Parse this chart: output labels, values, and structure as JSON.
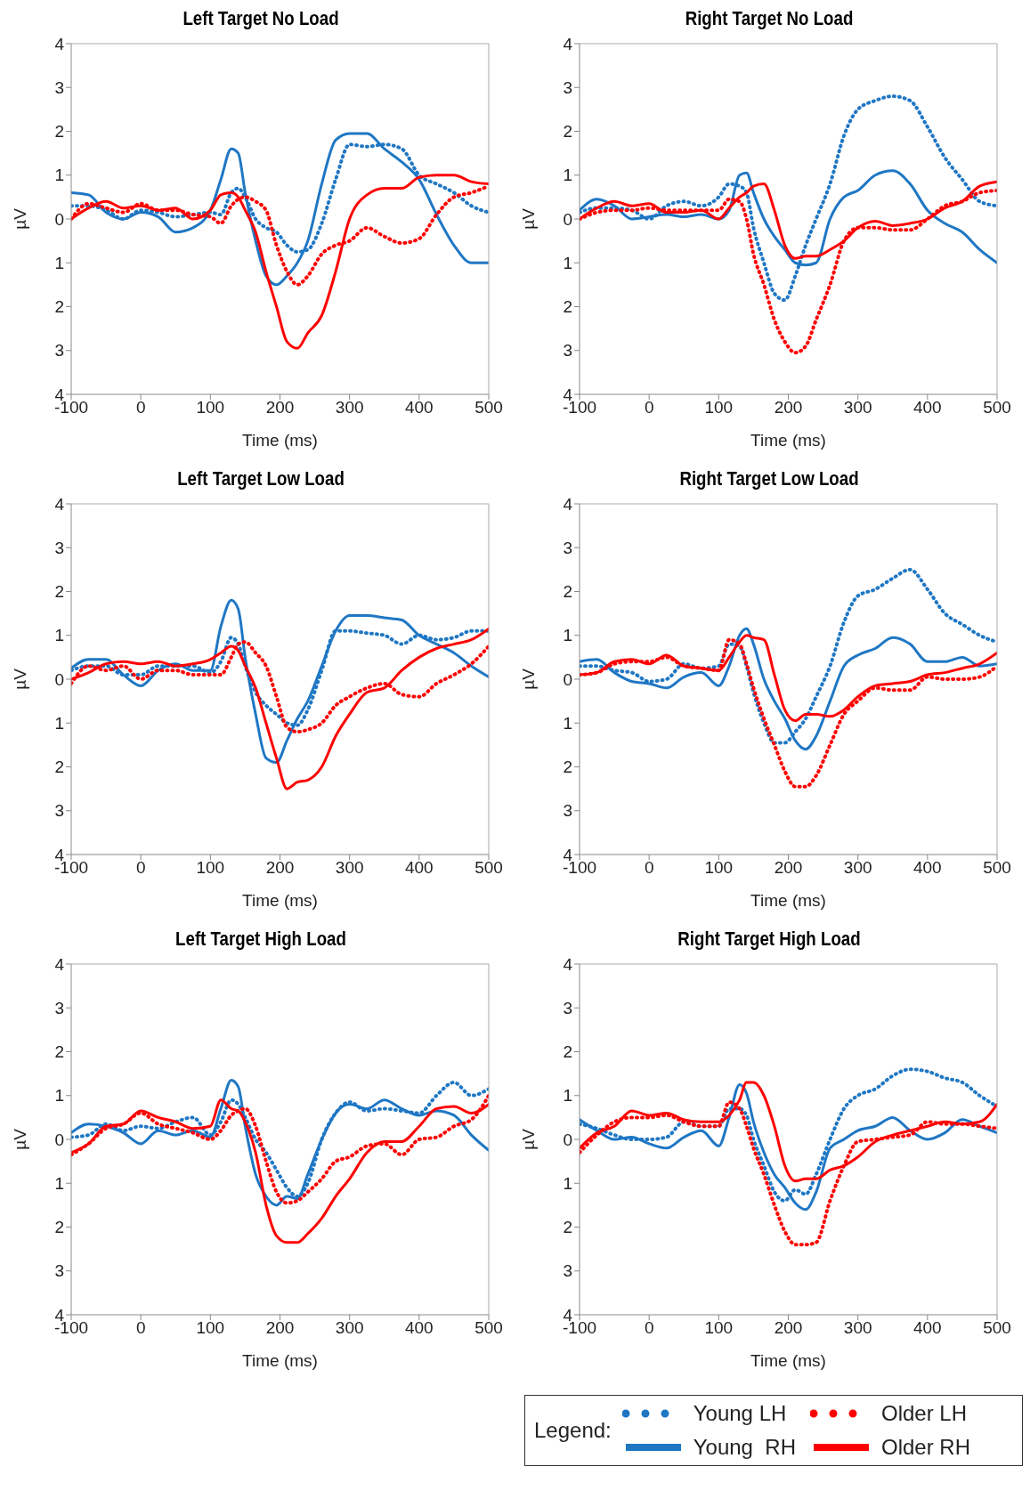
{
  "chart_data": [
    {
      "type": "line",
      "title": "Left Target No Load",
      "xlabel": "Time (ms)",
      "ylabel": "µV",
      "legend": false,
      "x": [
        -100,
        -75,
        -50,
        -25,
        0,
        25,
        50,
        75,
        100,
        115,
        130,
        140,
        150,
        165,
        180,
        195,
        210,
        225,
        240,
        260,
        280,
        300,
        325,
        350,
        375,
        400,
        425,
        450,
        475,
        500
      ],
      "xlim": [
        -100,
        500
      ],
      "xticks": [
        -100,
        0,
        100,
        200,
        300,
        400,
        500
      ],
      "ylim": [
        -4,
        4
      ],
      "yticks": [
        {
          "value": -4,
          "label": "4"
        },
        {
          "value": -3,
          "label": "3"
        },
        {
          "value": -2,
          "label": "2"
        },
        {
          "value": -1,
          "label": "1"
        },
        0,
        1,
        2,
        3,
        4
      ],
      "series": [
        {
          "color": "#1f77c4",
          "line_style": "dotted",
          "values": [
            0.3,
            0.3,
            0.2,
            0.0,
            0.2,
            0.15,
            0.05,
            0.1,
            0.15,
            0.1,
            0.6,
            0.7,
            0.5,
            0.0,
            -0.2,
            -0.3,
            -0.6,
            -0.75,
            -0.7,
            -0.1,
            0.9,
            1.7,
            1.65,
            1.7,
            1.6,
            1.0,
            0.8,
            0.6,
            0.3,
            0.15
          ]
        },
        {
          "color": "#1f77c4",
          "line_style": "solid",
          "values": [
            0.6,
            0.55,
            0.15,
            0.0,
            0.15,
            0.05,
            -0.3,
            -0.2,
            0.2,
            0.9,
            1.6,
            1.5,
            0.6,
            -0.5,
            -1.3,
            -1.5,
            -1.3,
            -1.0,
            -0.5,
            0.8,
            1.8,
            1.95,
            1.95,
            1.6,
            1.3,
            0.9,
            0.1,
            -0.6,
            -1.0,
            -1.0
          ]
        },
        {
          "color": "#ff0000",
          "line_style": "dotted",
          "values": [
            0.0,
            0.35,
            0.25,
            0.15,
            0.35,
            0.2,
            0.2,
            0.1,
            0.05,
            -0.1,
            0.3,
            0.45,
            0.5,
            0.4,
            0.2,
            -0.6,
            -1.2,
            -1.5,
            -1.3,
            -0.8,
            -0.6,
            -0.5,
            -0.2,
            -0.4,
            -0.55,
            -0.45,
            0.1,
            0.5,
            0.6,
            0.75
          ]
        },
        {
          "color": "#ff0000",
          "line_style": "solid",
          "values": [
            0.0,
            0.25,
            0.4,
            0.25,
            0.3,
            0.2,
            0.25,
            0.0,
            0.2,
            0.55,
            0.6,
            0.5,
            0.2,
            -0.3,
            -1.2,
            -2.0,
            -2.8,
            -2.95,
            -2.6,
            -2.2,
            -1.2,
            0.0,
            0.55,
            0.7,
            0.7,
            0.95,
            1.0,
            1.0,
            0.85,
            0.8
          ]
        }
      ]
    },
    {
      "type": "line",
      "title": "Right Target No Load",
      "xlabel": "Time (ms)",
      "ylabel": "µV",
      "legend": false,
      "x": [
        -100,
        -75,
        -50,
        -25,
        0,
        25,
        50,
        75,
        100,
        115,
        130,
        140,
        150,
        165,
        180,
        195,
        210,
        225,
        240,
        260,
        280,
        300,
        325,
        350,
        375,
        400,
        425,
        450,
        475,
        500
      ],
      "xlim": [
        -100,
        500
      ],
      "xticks": [
        -100,
        0,
        100,
        200,
        300,
        400,
        500
      ],
      "ylim": [
        -4,
        4
      ],
      "yticks": [
        {
          "value": -4,
          "label": "4"
        },
        {
          "value": -3,
          "label": "3"
        },
        {
          "value": -2,
          "label": "2"
        },
        {
          "value": -1,
          "label": "1"
        },
        0,
        1,
        2,
        3,
        4
      ],
      "series": [
        {
          "color": "#1f77c4",
          "line_style": "dotted",
          "values": [
            0.15,
            0.25,
            0.25,
            0.2,
            0.0,
            0.3,
            0.4,
            0.3,
            0.5,
            0.8,
            0.75,
            0.6,
            -0.2,
            -1.0,
            -1.7,
            -1.85,
            -1.3,
            -0.6,
            0.0,
            0.8,
            1.9,
            2.5,
            2.7,
            2.8,
            2.7,
            2.1,
            1.4,
            0.9,
            0.4,
            0.3
          ]
        },
        {
          "color": "#1f77c4",
          "line_style": "solid",
          "values": [
            0.2,
            0.45,
            0.3,
            0.0,
            0.05,
            0.1,
            0.05,
            0.1,
            0.0,
            0.2,
            1.0,
            1.05,
            0.6,
            0.0,
            -0.4,
            -0.7,
            -1.0,
            -1.05,
            -1.0,
            0.0,
            0.5,
            0.65,
            1.0,
            1.1,
            0.8,
            0.2,
            -0.1,
            -0.3,
            -0.7,
            -1.0
          ]
        },
        {
          "color": "#ff0000",
          "line_style": "dotted",
          "values": [
            0.0,
            0.15,
            0.2,
            0.2,
            0.25,
            0.2,
            0.2,
            0.2,
            0.2,
            0.45,
            0.4,
            0.0,
            -0.8,
            -1.5,
            -2.3,
            -2.8,
            -3.05,
            -2.9,
            -2.3,
            -1.5,
            -0.5,
            -0.2,
            -0.2,
            -0.25,
            -0.25,
            0.0,
            0.3,
            0.4,
            0.6,
            0.65
          ]
        },
        {
          "color": "#ff0000",
          "line_style": "solid",
          "values": [
            0.0,
            0.25,
            0.4,
            0.3,
            0.35,
            0.15,
            0.15,
            0.2,
            0.0,
            0.25,
            0.5,
            0.6,
            0.75,
            0.8,
            0.2,
            -0.6,
            -0.9,
            -0.85,
            -0.85,
            -0.7,
            -0.5,
            -0.2,
            -0.05,
            -0.15,
            -0.1,
            0.0,
            0.25,
            0.4,
            0.75,
            0.85
          ]
        }
      ]
    },
    {
      "type": "line",
      "title": "Left Target Low Load",
      "xlabel": "Time (ms)",
      "ylabel": "µV",
      "legend": false,
      "x": [
        -100,
        -75,
        -50,
        -25,
        0,
        25,
        50,
        75,
        100,
        115,
        130,
        140,
        150,
        165,
        180,
        195,
        210,
        225,
        240,
        260,
        280,
        300,
        325,
        350,
        375,
        400,
        425,
        450,
        475,
        500
      ],
      "xlim": [
        -100,
        500
      ],
      "xticks": [
        -100,
        0,
        100,
        200,
        300,
        400,
        500
      ],
      "ylim": [
        -4,
        4
      ],
      "yticks": [
        {
          "value": -4,
          "label": "4"
        },
        {
          "value": -3,
          "label": "3"
        },
        {
          "value": -2,
          "label": "2"
        },
        {
          "value": -1,
          "label": "1"
        },
        0,
        1,
        2,
        3,
        4
      ],
      "series": [
        {
          "color": "#1f77c4",
          "line_style": "dotted",
          "values": [
            0.2,
            0.3,
            0.3,
            0.1,
            0.1,
            0.3,
            0.3,
            0.3,
            0.15,
            0.4,
            0.95,
            0.8,
            0.3,
            -0.3,
            -0.6,
            -0.8,
            -1.0,
            -1.05,
            -0.7,
            0.2,
            1.1,
            1.1,
            1.05,
            1.0,
            0.8,
            1.0,
            0.9,
            0.95,
            1.1,
            1.1
          ]
        },
        {
          "color": "#1f77c4",
          "line_style": "solid",
          "values": [
            0.25,
            0.45,
            0.45,
            0.1,
            -0.15,
            0.2,
            0.35,
            0.2,
            0.2,
            1.2,
            1.8,
            1.6,
            0.5,
            -0.8,
            -1.8,
            -1.9,
            -1.4,
            -0.9,
            -0.5,
            0.3,
            1.1,
            1.45,
            1.45,
            1.4,
            1.35,
            1.0,
            0.8,
            0.6,
            0.3,
            0.05
          ]
        },
        {
          "color": "#ff0000",
          "line_style": "dotted",
          "values": [
            -0.1,
            0.3,
            0.2,
            0.3,
            0.0,
            0.2,
            0.2,
            0.1,
            0.1,
            0.1,
            0.5,
            0.8,
            0.85,
            0.6,
            0.3,
            -0.4,
            -1.1,
            -1.2,
            -1.15,
            -1.0,
            -0.6,
            -0.4,
            -0.2,
            -0.1,
            -0.35,
            -0.4,
            -0.1,
            0.1,
            0.35,
            0.75
          ]
        },
        {
          "color": "#ff0000",
          "line_style": "solid",
          "values": [
            0.0,
            0.15,
            0.35,
            0.4,
            0.35,
            0.4,
            0.3,
            0.35,
            0.45,
            0.6,
            0.75,
            0.65,
            0.3,
            -0.2,
            -1.0,
            -1.8,
            -2.5,
            -2.35,
            -2.3,
            -2.0,
            -1.3,
            -0.8,
            -0.3,
            -0.2,
            0.2,
            0.5,
            0.7,
            0.8,
            0.9,
            1.15
          ]
        }
      ]
    },
    {
      "type": "line",
      "title": "Right Target Low Load",
      "xlabel": "Time (ms)",
      "ylabel": "µV",
      "legend": false,
      "x": [
        -100,
        -75,
        -50,
        -25,
        0,
        25,
        50,
        75,
        100,
        115,
        130,
        140,
        150,
        165,
        180,
        195,
        210,
        225,
        240,
        260,
        280,
        300,
        325,
        350,
        375,
        400,
        425,
        450,
        475,
        500
      ],
      "xlim": [
        -100,
        500
      ],
      "xticks": [
        -100,
        0,
        100,
        200,
        300,
        400,
        500
      ],
      "ylim": [
        -4,
        4
      ],
      "yticks": [
        {
          "value": -4,
          "label": "4"
        },
        {
          "value": -3,
          "label": "3"
        },
        {
          "value": -2,
          "label": "2"
        },
        {
          "value": -1,
          "label": "1"
        },
        0,
        1,
        2,
        3,
        4
      ],
      "series": [
        {
          "color": "#1f77c4",
          "line_style": "dotted",
          "values": [
            0.3,
            0.3,
            0.2,
            0.15,
            -0.05,
            0.0,
            0.35,
            0.25,
            0.3,
            0.8,
            0.75,
            0.3,
            -0.3,
            -1.0,
            -1.45,
            -1.45,
            -1.2,
            -0.9,
            -0.4,
            0.3,
            1.3,
            1.9,
            2.05,
            2.3,
            2.5,
            2.05,
            1.5,
            1.25,
            1.0,
            0.85
          ]
        },
        {
          "color": "#1f77c4",
          "line_style": "solid",
          "values": [
            0.4,
            0.45,
            0.15,
            -0.05,
            -0.1,
            -0.2,
            0.05,
            0.15,
            -0.15,
            0.3,
            1.0,
            1.15,
            0.8,
            0.0,
            -0.5,
            -0.9,
            -1.4,
            -1.6,
            -1.3,
            -0.5,
            0.3,
            0.55,
            0.7,
            0.95,
            0.8,
            0.4,
            0.4,
            0.5,
            0.3,
            0.35
          ]
        },
        {
          "color": "#ff0000",
          "line_style": "dotted",
          "values": [
            0.1,
            0.15,
            0.35,
            0.4,
            0.4,
            0.5,
            0.3,
            0.25,
            0.2,
            0.9,
            0.8,
            0.35,
            -0.2,
            -0.9,
            -1.5,
            -2.1,
            -2.45,
            -2.45,
            -2.2,
            -1.5,
            -0.8,
            -0.5,
            -0.2,
            -0.25,
            -0.25,
            0.05,
            0.0,
            0.0,
            0.05,
            0.3
          ]
        },
        {
          "color": "#ff0000",
          "line_style": "solid",
          "values": [
            0.1,
            0.15,
            0.4,
            0.45,
            0.35,
            0.55,
            0.3,
            0.25,
            0.2,
            0.5,
            0.85,
            1.0,
            0.95,
            0.9,
            0.1,
            -0.7,
            -0.95,
            -0.8,
            -0.8,
            -0.85,
            -0.7,
            -0.4,
            -0.15,
            -0.1,
            -0.05,
            0.1,
            0.15,
            0.25,
            0.35,
            0.6
          ]
        }
      ]
    },
    {
      "type": "line",
      "title": "Left Target High Load",
      "xlabel": "Time (ms)",
      "ylabel": "µV",
      "legend": false,
      "x": [
        -100,
        -75,
        -50,
        -25,
        0,
        25,
        50,
        75,
        100,
        115,
        130,
        140,
        150,
        165,
        180,
        195,
        210,
        225,
        240,
        260,
        280,
        300,
        325,
        350,
        375,
        400,
        425,
        450,
        475,
        500
      ],
      "xlim": [
        -100,
        500
      ],
      "xticks": [
        -100,
        0,
        100,
        200,
        300,
        400,
        500
      ],
      "ylim": [
        -4,
        4
      ],
      "yticks": [
        {
          "value": -4,
          "label": "4"
        },
        {
          "value": -3,
          "label": "3"
        },
        {
          "value": -2,
          "label": "2"
        },
        {
          "value": -1,
          "label": "1"
        },
        0,
        1,
        2,
        3,
        4
      ],
      "series": [
        {
          "color": "#1f77c4",
          "line_style": "dotted",
          "values": [
            0.05,
            0.1,
            0.35,
            0.2,
            0.3,
            0.25,
            0.4,
            0.5,
            0.1,
            0.4,
            0.9,
            0.8,
            0.5,
            0.0,
            -0.3,
            -0.7,
            -1.1,
            -1.3,
            -1.0,
            0.0,
            0.6,
            0.85,
            0.65,
            0.7,
            0.65,
            0.6,
            1.0,
            1.3,
            1.0,
            1.15
          ]
        },
        {
          "color": "#1f77c4",
          "line_style": "solid",
          "values": [
            0.15,
            0.35,
            0.3,
            0.15,
            -0.1,
            0.2,
            0.1,
            0.2,
            0.05,
            0.7,
            1.35,
            1.2,
            0.3,
            -0.8,
            -1.3,
            -1.5,
            -1.3,
            -1.35,
            -0.8,
            0.0,
            0.6,
            0.8,
            0.7,
            0.9,
            0.7,
            0.55,
            0.65,
            0.55,
            0.1,
            -0.25
          ]
        },
        {
          "color": "#ff0000",
          "line_style": "dotted",
          "values": [
            -0.35,
            -0.1,
            0.25,
            0.35,
            0.6,
            0.35,
            0.25,
            0.15,
            0.0,
            0.2,
            0.55,
            0.65,
            0.7,
            0.3,
            -0.5,
            -1.2,
            -1.45,
            -1.4,
            -1.2,
            -0.9,
            -0.5,
            -0.4,
            -0.15,
            -0.1,
            -0.35,
            0.0,
            0.05,
            0.3,
            0.45,
            1.0
          ]
        },
        {
          "color": "#ff0000",
          "line_style": "solid",
          "values": [
            -0.3,
            -0.1,
            0.3,
            0.35,
            0.65,
            0.5,
            0.4,
            0.25,
            0.3,
            0.9,
            0.7,
            0.65,
            0.4,
            -0.3,
            -1.5,
            -2.2,
            -2.35,
            -2.35,
            -2.15,
            -1.8,
            -1.3,
            -0.9,
            -0.3,
            -0.05,
            -0.05,
            0.3,
            0.7,
            0.75,
            0.6,
            0.8
          ]
        }
      ]
    },
    {
      "type": "line",
      "title": "Right Target High Load",
      "xlabel": "Time (ms)",
      "ylabel": "µV",
      "legend": "bottom right",
      "legend_title": "Legend:",
      "x": [
        -100,
        -75,
        -50,
        -25,
        0,
        25,
        50,
        75,
        100,
        115,
        130,
        140,
        150,
        165,
        180,
        195,
        210,
        225,
        240,
        260,
        280,
        300,
        325,
        350,
        375,
        400,
        425,
        450,
        475,
        500
      ],
      "xlim": [
        -100,
        500
      ],
      "xticks": [
        -100,
        0,
        100,
        200,
        300,
        400,
        500
      ],
      "ylim": [
        -4,
        4
      ],
      "yticks": [
        {
          "value": -4,
          "label": "4"
        },
        {
          "value": -3,
          "label": "3"
        },
        {
          "value": -2,
          "label": "2"
        },
        {
          "value": -1,
          "label": "1"
        },
        0,
        1,
        2,
        3,
        4
      ],
      "series": [
        {
          "name": "Young LH",
          "color": "#1f77c4",
          "line_style": "dotted",
          "values": [
            0.35,
            0.25,
            0.1,
            0.0,
            0.0,
            0.05,
            0.4,
            0.3,
            0.3,
            0.7,
            0.7,
            0.55,
            0.0,
            -0.6,
            -1.2,
            -1.4,
            -1.15,
            -1.25,
            -0.8,
            0.0,
            0.7,
            1.0,
            1.15,
            1.45,
            1.6,
            1.55,
            1.4,
            1.3,
            1.0,
            0.75
          ]
        },
        {
          "name": "Young  RH",
          "color": "#1f77c4",
          "line_style": "solid",
          "values": [
            0.45,
            0.2,
            0.0,
            0.05,
            -0.1,
            -0.2,
            0.05,
            0.2,
            -0.15,
            0.5,
            1.25,
            1.05,
            0.4,
            -0.3,
            -0.8,
            -1.1,
            -1.45,
            -1.6,
            -1.2,
            -0.2,
            0.0,
            0.2,
            0.3,
            0.5,
            0.2,
            0.0,
            0.15,
            0.45,
            0.3,
            0.15
          ]
        },
        {
          "name": "Older LH",
          "color": "#ff0000",
          "line_style": "dotted",
          "values": [
            -0.3,
            0.1,
            0.4,
            0.5,
            0.5,
            0.55,
            0.4,
            0.3,
            0.3,
            0.85,
            0.7,
            0.3,
            -0.2,
            -0.8,
            -1.5,
            -2.1,
            -2.4,
            -2.4,
            -2.35,
            -1.4,
            -0.6,
            -0.05,
            0.0,
            0.05,
            0.1,
            0.4,
            0.35,
            0.35,
            0.3,
            0.25
          ]
        },
        {
          "name": "Older RH",
          "color": "#ff0000",
          "line_style": "solid",
          "values": [
            -0.2,
            0.15,
            0.3,
            0.65,
            0.55,
            0.6,
            0.45,
            0.4,
            0.4,
            0.55,
            0.9,
            1.3,
            1.3,
            1.0,
            0.3,
            -0.6,
            -0.95,
            -0.9,
            -0.9,
            -0.7,
            -0.6,
            -0.4,
            -0.05,
            0.1,
            0.2,
            0.3,
            0.4,
            0.35,
            0.4,
            0.8
          ]
        }
      ]
    }
  ]
}
